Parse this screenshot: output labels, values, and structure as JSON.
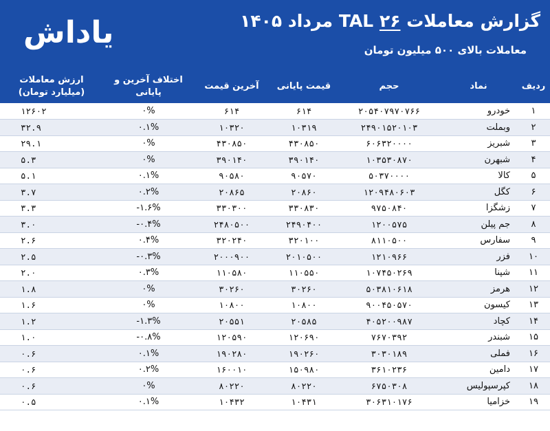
{
  "header": {
    "title_main": "گزارش معاملات TAL",
    "title_day": "۲۶",
    "title_date": "مرداد ۱۴۰۵",
    "subtitle": "معاملات بالای ۵۰۰ میلیون تومان",
    "logo": "یاداش"
  },
  "columns": {
    "row": "ردیف",
    "symbol": "نماد",
    "volume": "حجم",
    "close_price": "قیمت پایانی",
    "last_price": "آخرین قیمت",
    "diff": "اختلاف آخرین و پایانی",
    "value": "ارزش معاملات (میلیارد تومان)"
  },
  "rows": [
    {
      "n": "۱",
      "symbol": "خودرو",
      "volume": "۲۰۵۴۰۷۹۷۰۷۶۶",
      "close": "۶۱۴",
      "last": "۶۱۴",
      "diff": "۰%",
      "value": "۱۲۶۰۲"
    },
    {
      "n": "۲",
      "symbol": "وبملت",
      "volume": "۲۴۹۰۱۵۲۰۱۰۳",
      "close": "۱۰۳۱۹",
      "last": "۱۰۳۲۰",
      "diff": "۰.۱%",
      "value": "۳۲.۹"
    },
    {
      "n": "۳",
      "symbol": "شبریز",
      "volume": "۶۰۶۳۲۰۰۰۰",
      "close": "۴۳۰۸۵۰",
      "last": "۴۳۰۸۵۰",
      "diff": "۰%",
      "value": "۲۹.۱"
    },
    {
      "n": "۴",
      "symbol": "شبهرن",
      "volume": "۱۰۳۵۳۰۸۷۰",
      "close": "۳۹۰۱۴۰",
      "last": "۳۹۰۱۴۰",
      "diff": "۰%",
      "value": "۵.۳"
    },
    {
      "n": "۵",
      "symbol": "کالا",
      "volume": "۵۰۳۷۰۰۰۰",
      "close": "۹۰۵۷۰",
      "last": "۹۰۵۸۰",
      "diff": "۰.۱%",
      "value": "۵.۱"
    },
    {
      "n": "۶",
      "symbol": "کگل",
      "volume": "۱۲۰۹۴۸۰۶۰۳",
      "close": "۲۰۸۶۰",
      "last": "۲۰۸۶۵",
      "diff": "۰.۲%",
      "value": "۳.۷"
    },
    {
      "n": "۷",
      "symbol": "زشگزا",
      "volume": "۹۷۵۰۸۴۰",
      "close": "۳۳۰۸۳۰",
      "last": "۳۳۰۳۰۰",
      "diff": "-۱.۶%",
      "value": "۳.۳"
    },
    {
      "n": "۸",
      "symbol": "جم پیلن",
      "volume": "۱۲۰۰۵۷۵",
      "close": "۲۴۹۰۴۰۰",
      "last": "۲۴۸۰۵۰۰",
      "diff": "-۰.۴%",
      "value": "۳.۰"
    },
    {
      "n": "۹",
      "symbol": "سفارس",
      "volume": "۸۱۱۰۵۰۰",
      "close": "۳۲۰۱۰۰",
      "last": "۳۲۰۲۴۰",
      "diff": "۰.۴%",
      "value": "۲.۶"
    },
    {
      "n": "۱۰",
      "symbol": "فزر",
      "volume": "۱۲۱۰۹۶۶",
      "close": "۲۰۱۰۵۰۰",
      "last": "۲۰۰۰۹۰۰",
      "diff": "-۰.۳%",
      "value": "۲.۵"
    },
    {
      "n": "۱۱",
      "symbol": "شپنا",
      "volume": "۱۰۷۴۵۰۲۶۹",
      "close": "۱۱۰۵۵۰",
      "last": "۱۱۰۵۸۰",
      "diff": "۰.۳%",
      "value": "۲.۰"
    },
    {
      "n": "۱۲",
      "symbol": "هرمز",
      "volume": "۵۰۳۸۱۰۶۱۸",
      "close": "۳۰۲۶۰",
      "last": "۳۰۲۶۰",
      "diff": "۰%",
      "value": "۱.۸"
    },
    {
      "n": "۱۳",
      "symbol": "کیسون",
      "volume": "۹۰۰۴۵۰۵۷۰",
      "close": "۱۰۸۰۰",
      "last": "۱۰۸۰۰",
      "diff": "۰%",
      "value": "۱.۶"
    },
    {
      "n": "۱۴",
      "symbol": "کچاد",
      "volume": "۴۰۵۲۰۰۹۸۷",
      "close": "۲۰۵۸۵",
      "last": "۲۰۵۵۱",
      "diff": "-۱.۳%",
      "value": "۱.۲"
    },
    {
      "n": "۱۵",
      "symbol": "شبندر",
      "volume": "۷۶۷۰۳۹۲",
      "close": "۱۲۰۶۹۰",
      "last": "۱۲۰۵۹۰",
      "diff": "-۰.۸%",
      "value": "۱.۰"
    },
    {
      "n": "۱۶",
      "symbol": "فملی",
      "volume": "۳۰۳۰۱۸۹",
      "close": "۱۹۰۲۶۰",
      "last": "۱۹۰۲۸۰",
      "diff": "۰.۱%",
      "value": "۰.۶"
    },
    {
      "n": "۱۷",
      "symbol": "دامین",
      "volume": "۳۶۱۰۲۳۶",
      "close": "۱۵۰۹۸۰",
      "last": "۱۶۰۰۱۰",
      "diff": "۰.۲%",
      "value": "۰.۶"
    },
    {
      "n": "۱۸",
      "symbol": "کپرسپولیس",
      "volume": "۶۷۵۰۳۰۸",
      "close": "۸۰۲۲۰",
      "last": "۸۰۲۲۰",
      "diff": "۰%",
      "value": "۰.۶"
    },
    {
      "n": "۱۹",
      "symbol": "خزامیا",
      "volume": "۳۰۶۳۱۰۱۷۶",
      "close": "۱۰۴۳۱",
      "last": "۱۰۴۳۲",
      "diff": "۰.۱%",
      "value": "۰.۵"
    }
  ]
}
